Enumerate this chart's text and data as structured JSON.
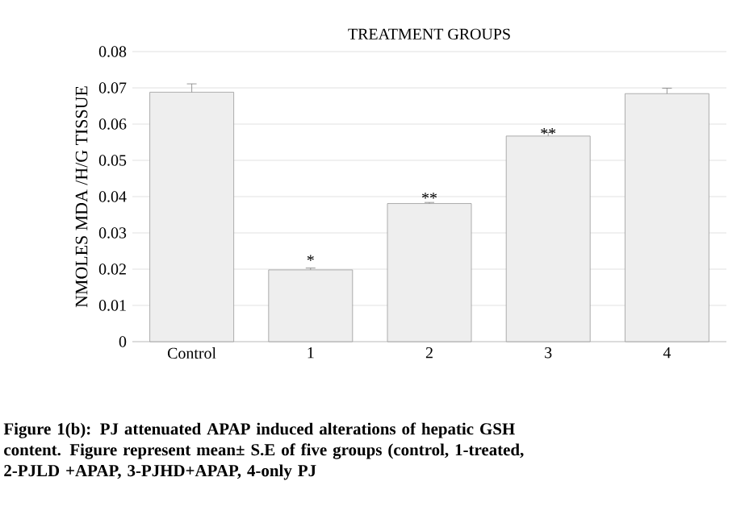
{
  "chart_data": {
    "type": "bar",
    "title": "TREATMENT GROUPS",
    "ylabel": "NMOLES MDA /H/G TISSUE",
    "categories": [
      "Control",
      "1",
      "2",
      "3",
      "4"
    ],
    "values": [
      0.0688,
      0.0198,
      0.0381,
      0.0567,
      0.0684
    ],
    "errors": [
      0.0023,
      0.0005,
      0.0003,
      0.001,
      0.0015
    ],
    "color": "#eeeeee",
    "ylim": [
      0,
      0.08
    ],
    "yticks": [
      0,
      0.01,
      0.02,
      0.03,
      0.04,
      0.05,
      0.06,
      0.07,
      0.08
    ],
    "grid": "y",
    "annotations": [
      {
        "text": "*",
        "x": "1",
        "y": 0.0203
      },
      {
        "text": "**",
        "x": "2",
        "y": 0.0375
      },
      {
        "text": "**",
        "x": "3",
        "y": 0.0553
      },
      "Figure 1(b): PJ attenuated APAP induced alterations of hepatic GSH content. Figure represent mean± S.E of five groups (control, 1-treated, 2-PJLD +APAP, 3-PJHD+APAP, 4-only PJ"
    ]
  }
}
